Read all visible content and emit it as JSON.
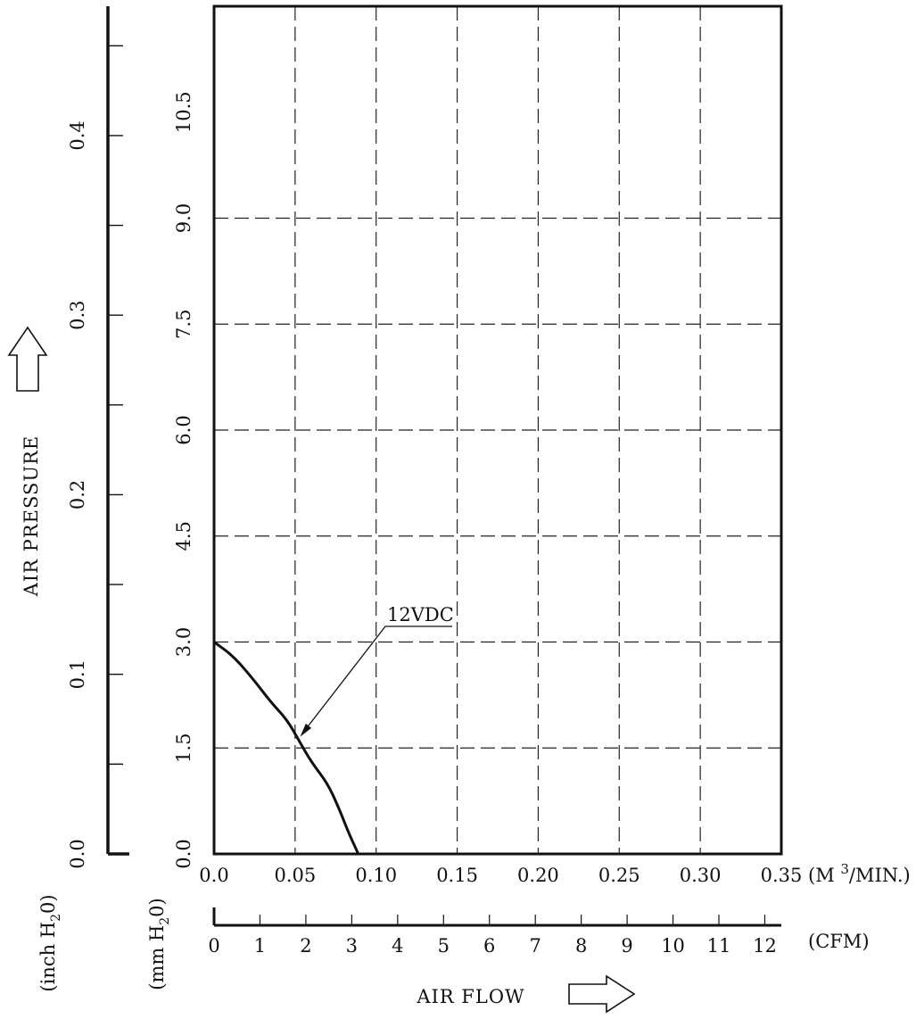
{
  "chart_data": {
    "type": "line",
    "x_flow_m3min": {
      "unit_label_prefix": "(M",
      "unit_label_sup": "3",
      "unit_label_suffix": "/MIN.)",
      "range": [
        0,
        0.35
      ],
      "ticks": [
        "0.0",
        "0.05",
        "0.10",
        "0.15",
        "0.20",
        "0.25",
        "0.30",
        "0.35"
      ]
    },
    "x_flow_cfm": {
      "unit_label": "(CFM)",
      "range": [
        0,
        12.36
      ],
      "ticks": [
        "0",
        "1",
        "2",
        "3",
        "4",
        "5",
        "6",
        "7",
        "8",
        "9",
        "10",
        "11",
        "12"
      ]
    },
    "xlabel": "AIR FLOW",
    "ylabel": "AIR PRESSURE",
    "y_pressure_mm": {
      "unit_label_prefix": "(mm H",
      "unit_label_sub": "2",
      "unit_label_suffix": "0)",
      "range": [
        0,
        12
      ],
      "ticks": [
        "0.0",
        "1.5",
        "3.0",
        "4.5",
        "6.0",
        "7.5",
        "9.0",
        "10.5"
      ]
    },
    "y_pressure_inch": {
      "unit_label_prefix": "(inch H",
      "unit_label_sub": "2",
      "unit_label_suffix": "0)",
      "range": [
        0,
        0.472
      ],
      "ticks": [
        "0.0",
        "0.1",
        "0.2",
        "0.3",
        "0.4"
      ]
    },
    "grid": true,
    "series": [
      {
        "name": "12VDC",
        "x": [
          0.0,
          0.012,
          0.025,
          0.035,
          0.045,
          0.052,
          0.06,
          0.07,
          0.077,
          0.083,
          0.089
        ],
        "y": [
          3.0,
          2.8,
          2.45,
          2.15,
          1.9,
          1.62,
          1.3,
          1.0,
          0.65,
          0.3,
          0.0
        ]
      }
    ],
    "annotation": {
      "text": "12VDC",
      "point": [
        0.052,
        1.62
      ]
    }
  }
}
